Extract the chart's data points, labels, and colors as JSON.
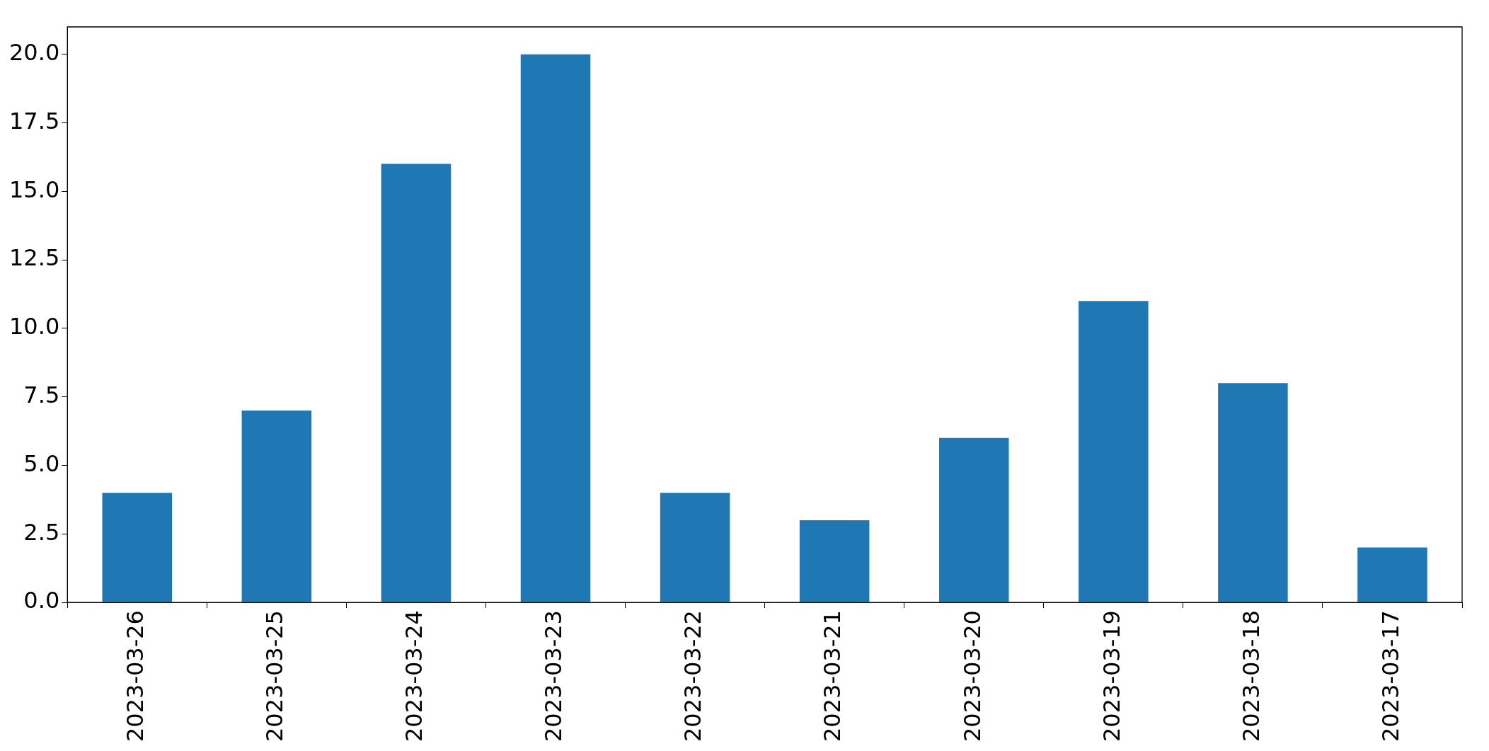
{
  "chart_data": {
    "type": "bar",
    "categories": [
      "2023-03-26",
      "2023-03-25",
      "2023-03-24",
      "2023-03-23",
      "2023-03-22",
      "2023-03-21",
      "2023-03-20",
      "2023-03-19",
      "2023-03-18",
      "2023-03-17"
    ],
    "values": [
      4,
      7,
      16,
      20,
      4,
      3,
      6,
      11,
      8,
      2
    ],
    "color": "#1f77b4",
    "ylim": [
      0,
      21
    ],
    "yticks": [
      {
        "value": 0,
        "label": "0.0"
      },
      {
        "value": 2.5,
        "label": "2.5"
      },
      {
        "value": 5,
        "label": "5.0"
      },
      {
        "value": 7.5,
        "label": "7.5"
      },
      {
        "value": 10,
        "label": "10.0"
      },
      {
        "value": 12.5,
        "label": "12.5"
      },
      {
        "value": 15,
        "label": "15.0"
      },
      {
        "value": 17.5,
        "label": "17.5"
      },
      {
        "value": 20,
        "label": "20.0"
      }
    ],
    "grid": false,
    "legend": false
  }
}
